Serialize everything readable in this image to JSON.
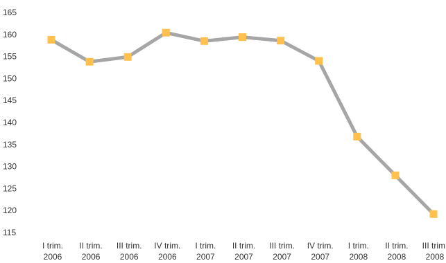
{
  "chart_data": {
    "type": "line",
    "title": "",
    "xlabel": "",
    "ylabel": "",
    "ylim": [
      115,
      165
    ],
    "yticks": [
      115,
      120,
      125,
      130,
      135,
      140,
      145,
      150,
      155,
      160,
      165
    ],
    "grid": false,
    "legend": "none",
    "categories": [
      [
        "I trim.",
        "2006"
      ],
      [
        "II trim.",
        "2006"
      ],
      [
        "III trim.",
        "2006"
      ],
      [
        "IV trim.",
        "2006"
      ],
      [
        "I trim.",
        "2007"
      ],
      [
        "II trim.",
        "2007"
      ],
      [
        "III trim.",
        "2007"
      ],
      [
        "IV trim.",
        "2007"
      ],
      [
        "I trim.",
        "2008"
      ],
      [
        "II trim.",
        "2008"
      ],
      [
        "III trim.",
        "2008"
      ]
    ],
    "series": [
      {
        "values": [
          158.8,
          153.8,
          154.9,
          160.4,
          158.5,
          159.4,
          158.6,
          154.0,
          136.8,
          128.0,
          119.2
        ],
        "line_color": "#a6a6a6",
        "marker_color": "#ffc04d",
        "marker": "square"
      }
    ]
  }
}
